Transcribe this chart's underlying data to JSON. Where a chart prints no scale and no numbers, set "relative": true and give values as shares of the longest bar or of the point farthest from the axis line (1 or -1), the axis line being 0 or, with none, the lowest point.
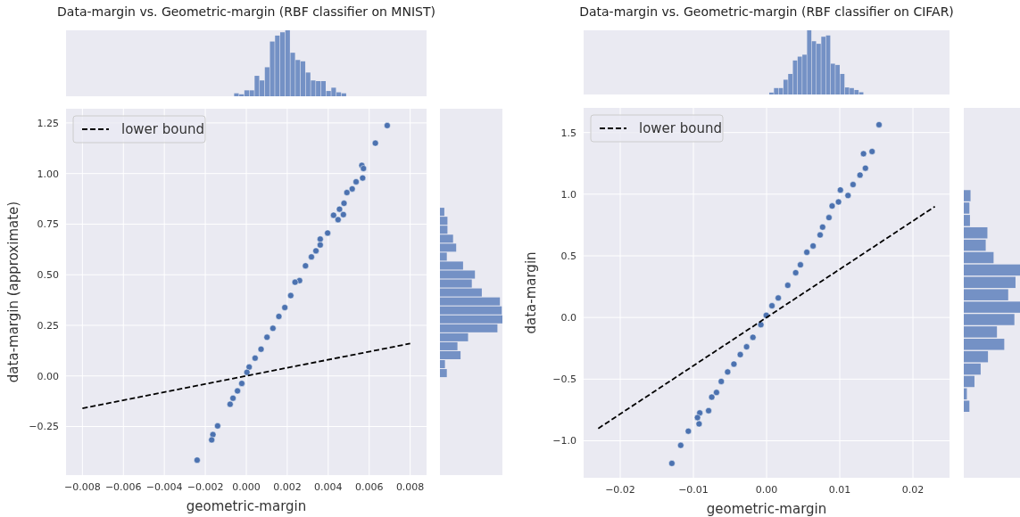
{
  "chart_data": [
    {
      "type": "bar",
      "title": "Data-margin vs. Geometric-margin (RBF classifier on MNIST)",
      "relative": true,
      "color": "#7491c5",
      "categories": [
        null,
        null,
        null,
        null,
        null,
        null,
        null,
        null,
        null,
        null,
        null,
        null,
        null,
        null,
        null,
        null,
        null,
        null,
        null,
        null,
        null,
        null
      ],
      "values": [
        0.045,
        0.03,
        0.09,
        0.09,
        0.31,
        0.24,
        0.44,
        0.83,
        0.92,
        0.97,
        1.0,
        0.66,
        0.55,
        0.53,
        0.36,
        0.24,
        0.23,
        0.23,
        0.08,
        0.13,
        0.06,
        0.045
      ]
    },
    {
      "type": "scatter",
      "xlabel": "geometric-margin",
      "ylabel": "data-margin (approximate)",
      "xlim": [
        -0.0088,
        0.0088
      ],
      "ylim": [
        -0.49,
        1.32
      ],
      "grid": true,
      "legend": "top left",
      "xticks": [
        {
          "value": -0.008,
          "label": "−0.008"
        },
        {
          "value": -0.006,
          "label": "−0.006"
        },
        {
          "value": -0.004,
          "label": "−0.004"
        },
        {
          "value": -0.002,
          "label": "−0.002"
        },
        {
          "value": 0,
          "label": "0.000"
        },
        {
          "value": 0.002,
          "label": "0.002"
        },
        {
          "value": 0.004,
          "label": "0.004"
        },
        {
          "value": 0.006,
          "label": "0.006"
        },
        {
          "value": 0.008,
          "label": "0.008"
        }
      ],
      "yticks": [
        {
          "value": -0.25,
          "label": "−0.25"
        },
        {
          "value": 0,
          "label": "0.00"
        },
        {
          "value": 0.25,
          "label": "0.25"
        },
        {
          "value": 0.5,
          "label": "0.50"
        },
        {
          "value": 0.75,
          "label": "0.75"
        },
        {
          "value": 1,
          "label": "1.00"
        },
        {
          "value": 1.25,
          "label": "1.25"
        }
      ],
      "series": [
        {
          "type": "scatter",
          "color": "#4c72b0",
          "marker": "circle",
          "x": [
            0.00688,
            0.0063,
            0.00564,
            0.00572,
            0.00568,
            0.00536,
            0.00517,
            0.00491,
            0.00477,
            0.00474,
            0.00455,
            0.00448,
            0.00426,
            0.00397,
            0.00361,
            0.00361,
            0.0034,
            0.00318,
            0.00289,
            0.0026,
            0.00238,
            0.00217,
            0.00188,
            0.00159,
            0.0013,
            0.00101,
            0.00072,
            0.00043,
            0.00014,
            3e-05,
            -0.00022,
            -0.00043,
            -0.00065,
            -0.00079,
            -0.0014,
            -0.00163,
            -0.00169,
            -0.0024
          ],
          "values": [
            1.237,
            1.15,
            1.04,
            1.025,
            0.978,
            0.959,
            0.924,
            0.906,
            0.853,
            0.797,
            0.824,
            0.772,
            0.794,
            0.706,
            0.676,
            0.647,
            0.618,
            0.588,
            0.544,
            0.471,
            0.463,
            0.397,
            0.338,
            0.294,
            0.235,
            0.191,
            0.132,
            0.088,
            0.044,
            0.018,
            -0.037,
            -0.074,
            -0.11,
            -0.14,
            -0.247,
            -0.29,
            -0.316,
            -0.416
          ]
        },
        {
          "type": "line",
          "name": "lower bound",
          "color": "#000000",
          "line_style": "dashed",
          "x": [
            -0.008,
            0.008
          ],
          "values": [
            -0.16,
            0.16
          ]
        }
      ]
    },
    {
      "type": "bar",
      "orientation": "horizontal",
      "relative": true,
      "color": "#7491c5",
      "categories": [
        null,
        null,
        null,
        null,
        null,
        null,
        null,
        null,
        null,
        null,
        null,
        null,
        null,
        null,
        null,
        null,
        null,
        null,
        null
      ],
      "values": [
        0.07,
        0.12,
        0.12,
        0.21,
        0.26,
        0.11,
        0.37,
        0.56,
        0.51,
        0.67,
        0.96,
        0.99,
        1.0,
        0.92,
        0.45,
        0.28,
        0.33,
        0.08,
        0.11
      ]
    },
    {
      "type": "bar",
      "title": "Data-margin vs. Geometric-margin (RBF classifier on CIFAR)",
      "relative": true,
      "color": "#7491c5",
      "categories": [
        null,
        null,
        null,
        null,
        null,
        null,
        null,
        null,
        null,
        null,
        null,
        null,
        null,
        null,
        null,
        null,
        null,
        null,
        null,
        null
      ],
      "values": [
        0.03,
        0.1,
        0.1,
        0.23,
        0.32,
        0.53,
        0.59,
        0.62,
        1.0,
        0.83,
        0.79,
        0.9,
        0.92,
        0.48,
        0.46,
        0.32,
        0.11,
        0.1,
        0.07,
        0.035
      ]
    },
    {
      "type": "scatter",
      "xlabel": "geometric-margin",
      "ylabel": "data-margin",
      "xlim": [
        -0.025,
        0.025
      ],
      "ylim": [
        -1.3,
        1.7
      ],
      "grid": true,
      "legend": "top left",
      "xticks": [
        {
          "value": -0.02,
          "label": "−0.02"
        },
        {
          "value": -0.01,
          "label": "−0.01"
        },
        {
          "value": 0,
          "label": "0.00"
        },
        {
          "value": 0.01,
          "label": "0.01"
        },
        {
          "value": 0.02,
          "label": "0.02"
        }
      ],
      "yticks": [
        {
          "value": -1,
          "label": "−1.0"
        },
        {
          "value": -0.5,
          "label": "−0.5"
        },
        {
          "value": 0,
          "label": "0.0"
        },
        {
          "value": 0.5,
          "label": "0.5"
        },
        {
          "value": 1,
          "label": "1.0"
        },
        {
          "value": 1.5,
          "label": "1.5"
        }
      ],
      "series": [
        {
          "type": "scatter",
          "color": "#4c72b0",
          "marker": "circle",
          "x": [
            0.01537,
            0.01325,
            0.01442,
            0.01351,
            0.01277,
            0.01009,
            0.01182,
            0.01113,
            0.00983,
            0.00896,
            0.00853,
            0.00766,
            0.00732,
            0.00636,
            0.0055,
            0.00463,
            0.00398,
            0.0029,
            0.0016,
            0.00074,
            -4e-05,
            -0.00078,
            -0.00186,
            -0.00273,
            -0.00359,
            -0.00446,
            -0.00532,
            -0.00619,
            -0.00684,
            -0.00749,
            -0.00792,
            -0.00913,
            -0.00922,
            -0.00944,
            -0.01069,
            -0.01173,
            -0.01294
          ],
          "values": [
            1.563,
            1.328,
            1.346,
            1.211,
            1.155,
            1.034,
            1.078,
            0.989,
            0.937,
            0.904,
            0.81,
            0.733,
            0.669,
            0.58,
            0.529,
            0.427,
            0.363,
            0.261,
            0.158,
            0.095,
            0.018,
            -0.059,
            -0.161,
            -0.238,
            -0.301,
            -0.378,
            -0.442,
            -0.519,
            -0.608,
            -0.646,
            -0.756,
            -0.774,
            -0.863,
            -0.812,
            -0.922,
            -1.037,
            -1.183
          ]
        },
        {
          "type": "line",
          "name": "lower bound",
          "color": "#000000",
          "line_style": "dashed",
          "x": [
            -0.023,
            0.023
          ],
          "values": [
            -0.9,
            0.9
          ]
        }
      ]
    },
    {
      "type": "bar",
      "orientation": "horizontal",
      "relative": true,
      "color": "#7491c5",
      "categories": [
        null,
        null,
        null,
        null,
        null,
        null,
        null,
        null,
        null,
        null,
        null,
        null,
        null,
        null,
        null,
        null,
        null,
        null
      ],
      "values": [
        0.12,
        0.1,
        0.11,
        0.42,
        0.39,
        0.53,
        1.0,
        0.92,
        0.79,
        1.0,
        0.9,
        0.59,
        0.72,
        0.43,
        0.3,
        0.19,
        0.055,
        0.1
      ]
    }
  ]
}
